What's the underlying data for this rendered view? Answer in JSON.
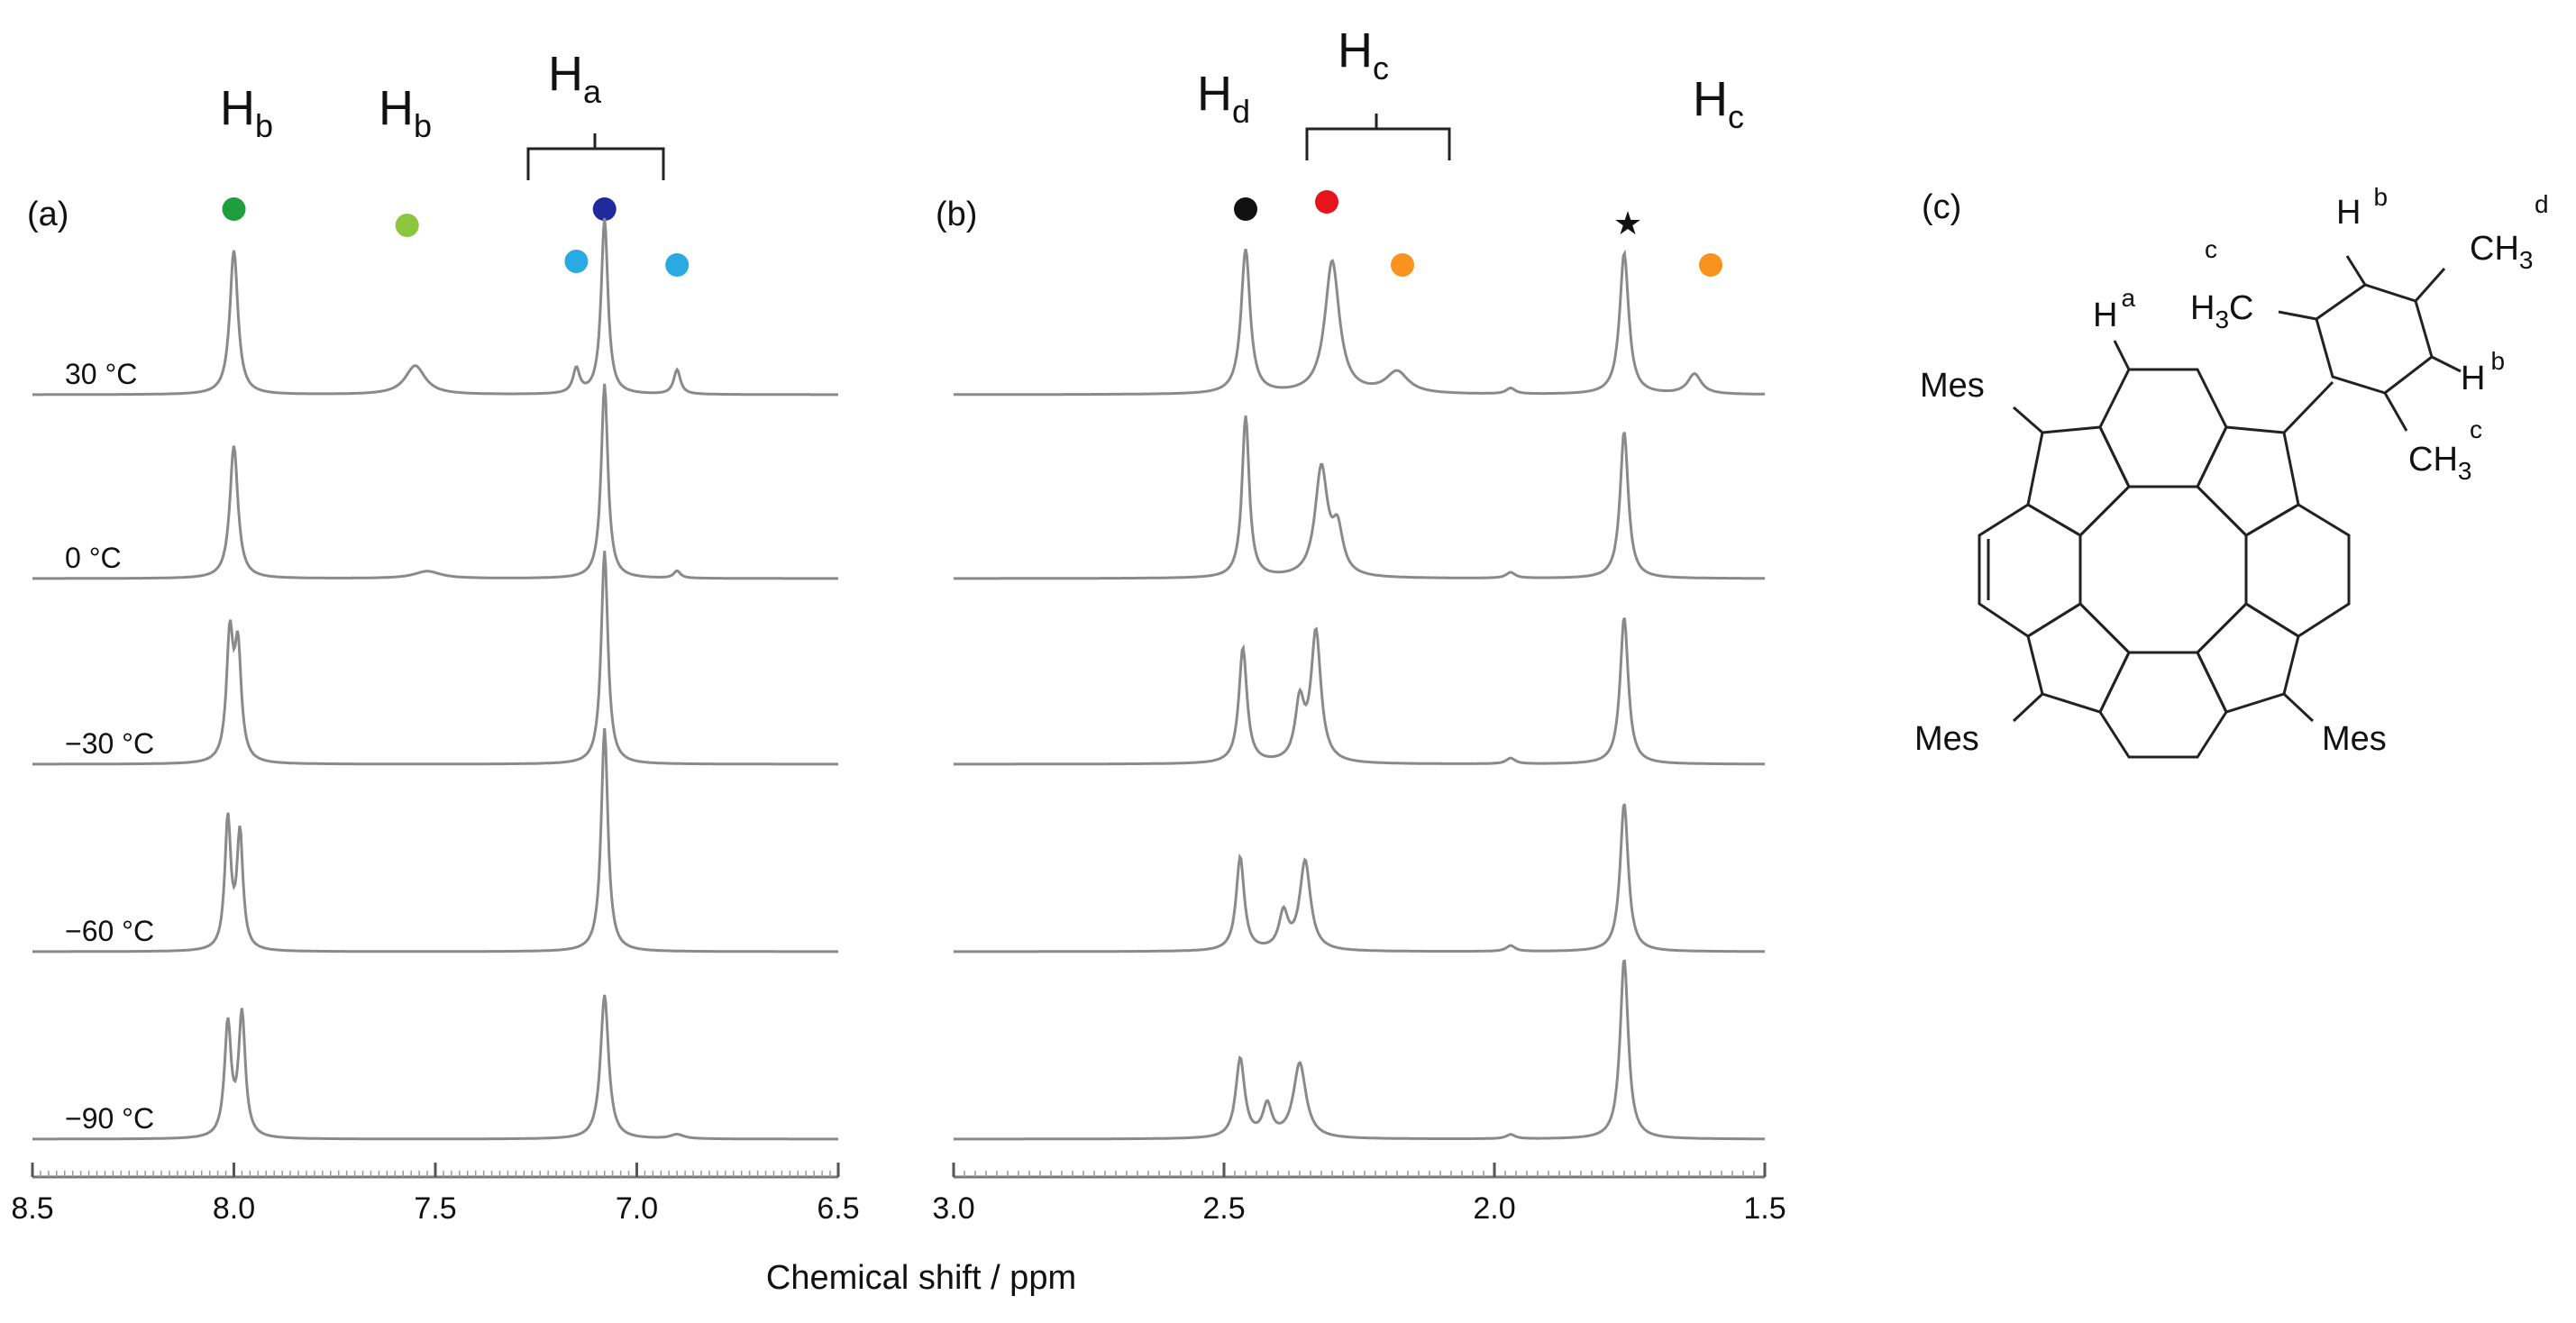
{
  "chart_data": [
    {
      "type": "line",
      "panel": "(a)",
      "xlabel": "",
      "xlim": [
        8.5,
        6.5
      ],
      "x_ticks": [
        8.5,
        8.0,
        7.5,
        7.0,
        6.5
      ],
      "x_tick_labels": [
        "8.5",
        "8.0",
        "7.5",
        "7.0",
        "6.5"
      ],
      "series": [
        {
          "name": "30 °C",
          "label": "30 °C",
          "peaks": [
            {
              "x": 8.0,
              "h": 1.0,
              "w": 0.012
            },
            {
              "x": 7.55,
              "h": 0.2,
              "w": 0.03
            },
            {
              "x": 7.15,
              "h": 0.17,
              "w": 0.01
            },
            {
              "x": 7.08,
              "h": 1.22,
              "w": 0.01
            },
            {
              "x": 6.9,
              "h": 0.17,
              "w": 0.01
            }
          ]
        },
        {
          "name": "0 °C",
          "label": "0 °C",
          "peaks": [
            {
              "x": 8.0,
              "h": 0.92,
              "w": 0.012
            },
            {
              "x": 7.52,
              "h": 0.05,
              "w": 0.04
            },
            {
              "x": 7.08,
              "h": 1.35,
              "w": 0.01
            },
            {
              "x": 6.9,
              "h": 0.05,
              "w": 0.01
            }
          ]
        },
        {
          "name": "-30 °C",
          "label": "−30 °C",
          "peaks": [
            {
              "x": 8.01,
              "h": 0.85,
              "w": 0.01
            },
            {
              "x": 7.99,
              "h": 0.75,
              "w": 0.01
            },
            {
              "x": 7.08,
              "h": 1.48,
              "w": 0.01
            }
          ]
        },
        {
          "name": "-60 °C",
          "label": "−60 °C",
          "peaks": [
            {
              "x": 8.015,
              "h": 0.9,
              "w": 0.009
            },
            {
              "x": 7.985,
              "h": 0.8,
              "w": 0.009
            },
            {
              "x": 7.08,
              "h": 1.55,
              "w": 0.01
            }
          ]
        },
        {
          "name": "-90 °C",
          "label": "−90 °C",
          "peaks": [
            {
              "x": 8.015,
              "h": 0.78,
              "w": 0.01
            },
            {
              "x": 7.98,
              "h": 0.85,
              "w": 0.01
            },
            {
              "x": 7.08,
              "h": 1.0,
              "w": 0.012
            },
            {
              "x": 6.9,
              "h": 0.03,
              "w": 0.02
            }
          ]
        }
      ]
    },
    {
      "type": "line",
      "panel": "(b)",
      "xlabel": "",
      "xlim": [
        3.0,
        1.5
      ],
      "x_ticks": [
        3.0,
        2.5,
        2.0,
        1.5
      ],
      "x_tick_labels": [
        "3.0",
        "2.5",
        "2.0",
        "1.5"
      ],
      "series": [
        {
          "name": "30 °C",
          "peaks": [
            {
              "x": 2.46,
              "h": 1.0,
              "w": 0.01
            },
            {
              "x": 2.3,
              "h": 0.92,
              "w": 0.016
            },
            {
              "x": 2.18,
              "h": 0.15,
              "w": 0.025
            },
            {
              "x": 1.97,
              "h": 0.04,
              "w": 0.01
            },
            {
              "x": 1.76,
              "h": 0.98,
              "w": 0.01
            },
            {
              "x": 1.63,
              "h": 0.14,
              "w": 0.015
            }
          ]
        },
        {
          "name": "0 °C",
          "peaks": [
            {
              "x": 2.46,
              "h": 1.12,
              "w": 0.008
            },
            {
              "x": 2.32,
              "h": 0.75,
              "w": 0.014
            },
            {
              "x": 2.29,
              "h": 0.3,
              "w": 0.012
            },
            {
              "x": 1.97,
              "h": 0.04,
              "w": 0.01
            },
            {
              "x": 1.76,
              "h": 1.02,
              "w": 0.009
            }
          ]
        },
        {
          "name": "-30 °C",
          "peaks": [
            {
              "x": 2.465,
              "h": 0.8,
              "w": 0.009
            },
            {
              "x": 2.36,
              "h": 0.4,
              "w": 0.01
            },
            {
              "x": 2.33,
              "h": 0.9,
              "w": 0.011
            },
            {
              "x": 1.97,
              "h": 0.04,
              "w": 0.01
            },
            {
              "x": 1.76,
              "h": 1.02,
              "w": 0.009
            }
          ]
        },
        {
          "name": "-60 °C",
          "peaks": [
            {
              "x": 2.47,
              "h": 0.65,
              "w": 0.009
            },
            {
              "x": 2.39,
              "h": 0.25,
              "w": 0.01
            },
            {
              "x": 2.35,
              "h": 0.62,
              "w": 0.012
            },
            {
              "x": 1.97,
              "h": 0.04,
              "w": 0.01
            },
            {
              "x": 1.76,
              "h": 1.03,
              "w": 0.009
            }
          ]
        },
        {
          "name": "-90 °C",
          "peaks": [
            {
              "x": 2.47,
              "h": 0.55,
              "w": 0.01
            },
            {
              "x": 2.42,
              "h": 0.22,
              "w": 0.01
            },
            {
              "x": 2.36,
              "h": 0.52,
              "w": 0.014
            },
            {
              "x": 1.97,
              "h": 0.03,
              "w": 0.01
            },
            {
              "x": 1.76,
              "h": 1.25,
              "w": 0.009
            }
          ]
        }
      ]
    }
  ],
  "shared_xlabel": "Chemical shift / ppm",
  "panel_a": {
    "label": "(a)",
    "peak_labels": [
      {
        "id": "hb1",
        "main": "H",
        "sub": "b"
      },
      {
        "id": "hb2",
        "main": "H",
        "sub": "b"
      },
      {
        "id": "ha",
        "main": "H",
        "sub": "a"
      }
    ],
    "markers": [
      {
        "id": "a-green",
        "x": 8.0,
        "row": 1,
        "color": "#1e9e3e"
      },
      {
        "id": "a-lightgreen",
        "x": 7.57,
        "row": 2,
        "color": "#8cc63f"
      },
      {
        "id": "a-navy",
        "x": 7.08,
        "row": 1,
        "color": "#1f2a9c"
      },
      {
        "id": "a-cyan1",
        "x": 7.15,
        "row": 3,
        "color": "#29abe2"
      },
      {
        "id": "a-cyan2",
        "x": 6.9,
        "row": 4,
        "color": "#29abe2"
      }
    ]
  },
  "panel_b": {
    "label": "(b)",
    "peak_labels": [
      {
        "id": "hd",
        "main": "H",
        "sub": "d"
      },
      {
        "id": "hc1",
        "main": "H",
        "sub": "c"
      },
      {
        "id": "hc2",
        "main": "H",
        "sub": "c"
      }
    ],
    "markers": [
      {
        "id": "b-black",
        "x": 2.46,
        "row": 1,
        "color": "#111111"
      },
      {
        "id": "b-red",
        "x": 2.31,
        "row": 0,
        "color": "#e8141b"
      },
      {
        "id": "b-orange1",
        "x": 2.17,
        "row": 4,
        "color": "#f7931e"
      },
      {
        "id": "b-orange2",
        "x": 1.6,
        "row": 4,
        "color": "#f7931e"
      }
    ],
    "star": "★"
  },
  "panel_c": {
    "label": "(c)",
    "mes_labels": [
      "Mes",
      "Mes",
      "Mes"
    ],
    "h_text": "H",
    "h_a": "a",
    "h_b_top": "b",
    "h_b_right": "b",
    "ch3_d": {
      "main": "CH",
      "sub": "3",
      "sup": "d"
    },
    "h3c_c": {
      "pre": "H",
      "sub": "3",
      "post": "C",
      "sup": "c"
    },
    "ch3_c": {
      "main": "CH",
      "sub": "3",
      "sup": "c"
    }
  }
}
